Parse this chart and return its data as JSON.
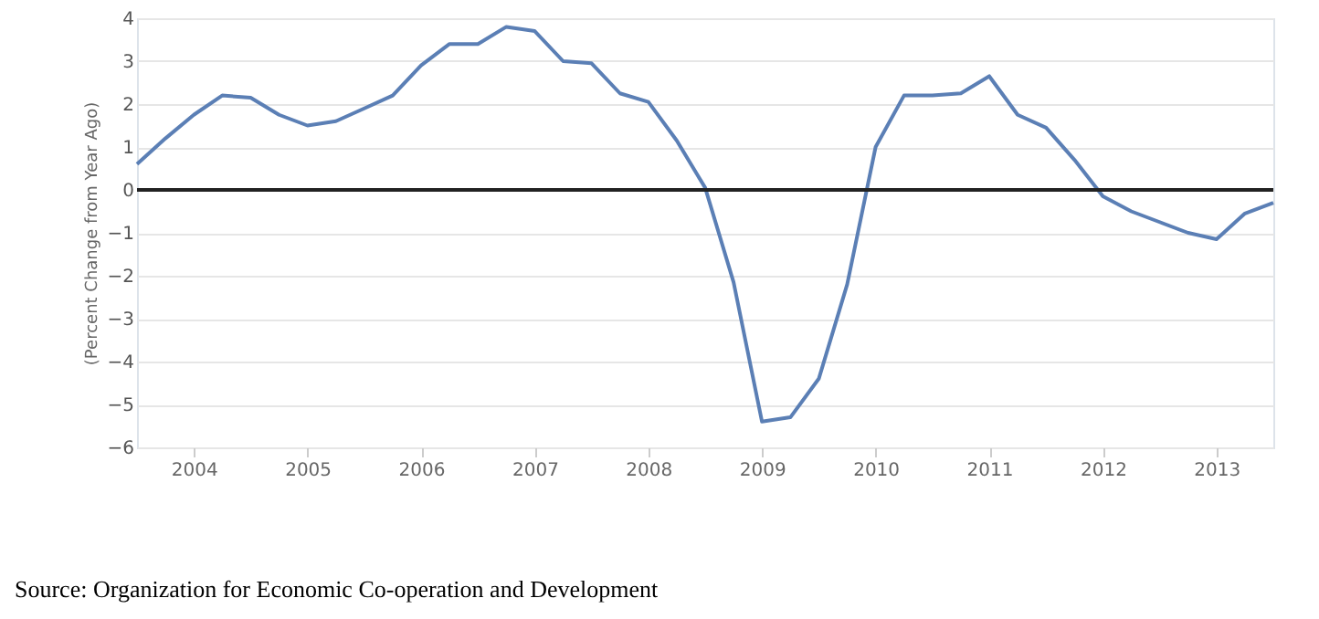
{
  "chart_data": {
    "type": "line",
    "ylabel": "(Percent Change from Year Ago)",
    "x": [
      2003.5,
      2003.75,
      2004,
      2004.25,
      2004.5,
      2004.75,
      2005,
      2005.25,
      2005.5,
      2005.75,
      2006,
      2006.25,
      2006.5,
      2006.75,
      2007,
      2007.25,
      2007.5,
      2007.75,
      2008,
      2008.25,
      2008.5,
      2008.75,
      2009,
      2009.25,
      2009.5,
      2009.75,
      2010,
      2010.25,
      2010.5,
      2010.75,
      2011,
      2011.25,
      2011.5,
      2011.75,
      2012,
      2012.25,
      2012.5,
      2012.75,
      2013,
      2013.25,
      2013.5
    ],
    "series": [
      {
        "color": "#5b7fb5",
        "values": [
          0.6,
          1.2,
          1.75,
          2.2,
          2.15,
          1.75,
          1.5,
          1.6,
          1.9,
          2.2,
          2.9,
          3.4,
          3.4,
          3.8,
          3.7,
          3.0,
          2.95,
          2.25,
          2.05,
          1.15,
          0.05,
          -2.15,
          -5.4,
          -5.3,
          -4.4,
          -2.2,
          1.0,
          2.2,
          2.2,
          2.25,
          2.65,
          1.75,
          1.45,
          0.7,
          -0.15,
          -0.5,
          -0.75,
          -1.0,
          -1.15,
          -0.55,
          -0.3
        ]
      }
    ],
    "xlim": [
      2003.5,
      2013.5
    ],
    "xticks": [
      2004,
      2005,
      2006,
      2007,
      2008,
      2009,
      2010,
      2011,
      2012,
      2013
    ],
    "ylim": [
      -6,
      4
    ],
    "yticks": [
      -6,
      -5,
      -4,
      -3,
      -2,
      -1,
      0,
      1,
      2,
      3,
      4
    ],
    "grid": "y",
    "marker": "none",
    "line_style": "solid",
    "ref_lines": [
      {
        "axis": "y",
        "value": 0,
        "color": "#222222"
      }
    ],
    "annotations": [
      "Source: Organization for Economic Co-operation and Development"
    ]
  }
}
